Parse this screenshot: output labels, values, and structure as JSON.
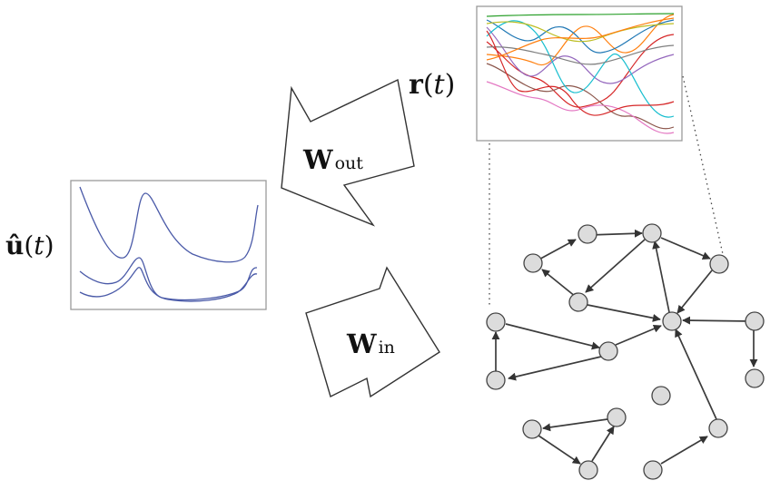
{
  "labels": {
    "u_hat": {
      "main": "û",
      "open": "(",
      "arg": "t",
      "close": ")"
    },
    "r": {
      "main": "r",
      "open": "(",
      "arg": "t",
      "close": ")"
    },
    "w_out": {
      "main": "W",
      "sub": "out"
    },
    "w_in": {
      "main": "W",
      "sub": "in"
    }
  },
  "colors": {
    "input_signal": "#4a5aa8",
    "reservoir_signals": [
      "#1f77b4",
      "#ff7f0e",
      "#2ca02c",
      "#d62728",
      "#9467bd",
      "#8c564b",
      "#e377c2",
      "#17becf",
      "#bcbd22",
      "#7f7f7f"
    ]
  },
  "icons": [
    "arrow-left-icon",
    "arrow-right-icon",
    "node-icon"
  ]
}
